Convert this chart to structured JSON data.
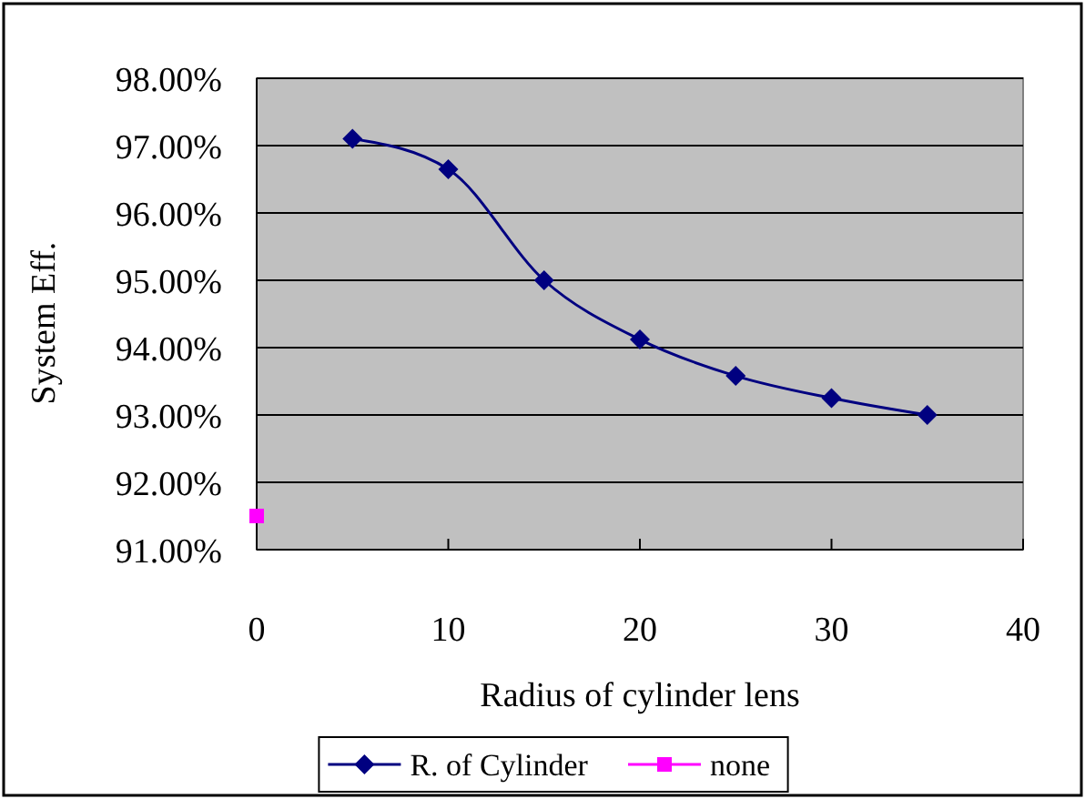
{
  "chart_data": {
    "type": "line",
    "xlabel": "Radius of cylinder lens",
    "ylabel": "System Eff.",
    "xlim": [
      0,
      40
    ],
    "xticks": [
      0,
      10,
      20,
      30,
      40
    ],
    "ylim": [
      91,
      98
    ],
    "yticks": [
      {
        "value": 91,
        "label": "91.00%"
      },
      {
        "value": 92,
        "label": "92.00%"
      },
      {
        "value": 93,
        "label": "93.00%"
      },
      {
        "value": 94,
        "label": "94.00%"
      },
      {
        "value": 95,
        "label": "95.00%"
      },
      {
        "value": 96,
        "label": "96.00%"
      },
      {
        "value": 97,
        "label": "97.00%"
      },
      {
        "value": 98,
        "label": "98.00%"
      }
    ],
    "grid": "y",
    "legend": "bottom",
    "series": [
      {
        "name": "R. of Cylinder",
        "color": "#000080",
        "marker": "diamond",
        "x": [
          5,
          10,
          15,
          20,
          25,
          30,
          35
        ],
        "values": [
          97.1,
          96.65,
          95.0,
          94.12,
          93.58,
          93.25,
          93.0
        ]
      },
      {
        "name": "none",
        "color": "#ff00ff",
        "marker": "square",
        "x": [
          0
        ],
        "values": [
          91.5
        ]
      }
    ]
  }
}
